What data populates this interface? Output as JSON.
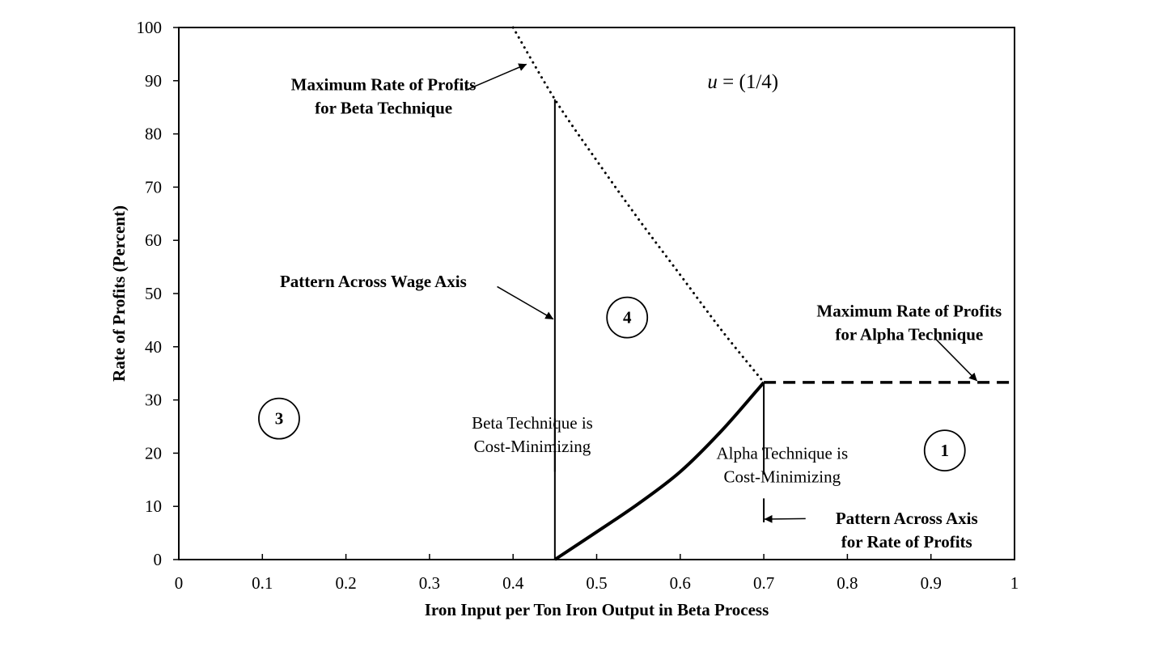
{
  "chart_data": {
    "type": "line",
    "title": "",
    "xlabel": "Iron Input per Ton Iron Output in Beta Process",
    "ylabel": "Rate of Profits (Percent)",
    "xlim": [
      0,
      1
    ],
    "ylim": [
      0,
      100
    ],
    "x_ticks": [
      "0",
      "0.1",
      "0.2",
      "0.3",
      "0.4",
      "0.5",
      "0.6",
      "0.7",
      "0.8",
      "0.9",
      "1"
    ],
    "y_ticks": [
      "0",
      "10",
      "20",
      "30",
      "40",
      "50",
      "60",
      "70",
      "80",
      "90",
      "100"
    ],
    "grid": false,
    "parameter_label": {
      "var": "u",
      "rest": " = (1/4)"
    },
    "series": [
      {
        "style": "dotted",
        "points": [
          [
            0.4,
            100
          ],
          [
            0.45,
            86.5
          ],
          [
            0.5,
            75
          ],
          [
            0.55,
            64
          ],
          [
            0.6,
            53.5
          ],
          [
            0.65,
            43
          ],
          [
            0.7,
            33.3
          ]
        ]
      },
      {
        "style": "dashed",
        "points": [
          [
            0.7,
            33.3
          ],
          [
            1.0,
            33.3
          ]
        ]
      },
      {
        "style": "solid-thick",
        "points": [
          [
            0.45,
            0
          ],
          [
            0.5,
            5.2
          ],
          [
            0.55,
            10.5
          ],
          [
            0.6,
            16.5
          ],
          [
            0.65,
            24.3
          ],
          [
            0.7,
            33.3
          ]
        ]
      },
      {
        "style": "solid-thin",
        "segments": [
          [
            [
              0.45,
              0
            ],
            [
              0.45,
              26.5
            ]
          ],
          [
            [
              0.45,
              16.5
            ],
            [
              0.45,
              86.5
            ]
          ]
        ]
      },
      {
        "style": "solid-thin",
        "segments": [
          [
            [
              0.7,
              7
            ],
            [
              0.7,
              11.5
            ]
          ],
          [
            [
              0.7,
              16
            ],
            [
              0.7,
              33.3
            ]
          ]
        ]
      }
    ],
    "region_labels": [
      {
        "text": "3",
        "x": 0.12,
        "y": 26.5
      },
      {
        "text": "4",
        "x": 0.5365,
        "y": 45.5
      },
      {
        "text": "1",
        "x": 0.9165,
        "y": 20.5
      }
    ],
    "annotations": [
      {
        "name": "annotation-max-rate-beta",
        "bold": true,
        "anchor": "center",
        "lines": [
          "Maximum Rate of Profits",
          "for Beta Technique"
        ],
        "x": 0.245,
        "y": 88.2,
        "arrow": {
          "from": [
            0.343,
            88.2
          ],
          "to": [
            0.416,
            93.1
          ]
        }
      },
      {
        "name": "annotation-pattern-wage-axis",
        "bold": true,
        "anchor": "start",
        "lines": [
          "Pattern Across Wage Axis"
        ],
        "x": 0.121,
        "y": 51.2,
        "arrow": {
          "from": [
            0.381,
            51.3
          ],
          "to": [
            0.448,
            45.2
          ]
        }
      },
      {
        "name": "annotation-max-rate-alpha",
        "bold": true,
        "anchor": "center",
        "lines": [
          "Maximum Rate of Profits",
          "for Alpha Technique"
        ],
        "x": 0.874,
        "y": 45.7,
        "arrow": {
          "from": [
            0.906,
            41.4
          ],
          "to": [
            0.955,
            33.6
          ]
        }
      },
      {
        "name": "annotation-beta-cost-minimizing",
        "bold": false,
        "anchor": "center",
        "lines": [
          "Beta Technique is",
          "Cost-Minimizing"
        ],
        "x": 0.423,
        "y": 24.6
      },
      {
        "name": "annotation-alpha-cost-minimizing",
        "bold": false,
        "anchor": "center",
        "lines": [
          "Alpha Technique is",
          "Cost-Minimizing"
        ],
        "x": 0.722,
        "y": 18.9
      },
      {
        "name": "annotation-pattern-profit-axis",
        "bold": true,
        "anchor": "center",
        "lines": [
          "Pattern Across Axis",
          "for Rate of Profits"
        ],
        "x": 0.871,
        "y": 6.7,
        "arrow": {
          "from": [
            0.75,
            7.7
          ],
          "to": [
            0.701,
            7.6
          ]
        }
      }
    ]
  }
}
